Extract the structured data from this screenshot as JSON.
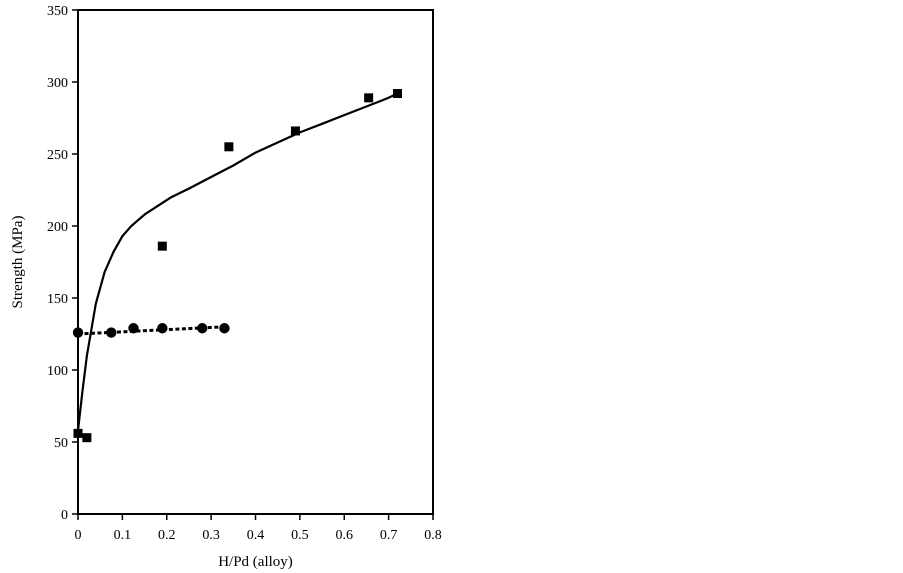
{
  "chart_data": {
    "type": "scatter",
    "title": "",
    "xlabel": "H/Pd (alloy)",
    "ylabel": "Strength (MPa)",
    "xlim": [
      0,
      0.8
    ],
    "ylim": [
      0,
      350
    ],
    "x_ticks": [
      0,
      0.1,
      0.2,
      0.3,
      0.4,
      0.5,
      0.6,
      0.7,
      0.8
    ],
    "x_tick_labels": [
      "0",
      "0.1",
      "0.2",
      "0.3",
      "0.4",
      "0.5",
      "0.6",
      "0.7",
      "0.8"
    ],
    "y_ticks": [
      0,
      50,
      100,
      150,
      200,
      250,
      300,
      350
    ],
    "y_tick_labels": [
      "0",
      "50",
      "100",
      "150",
      "200",
      "250",
      "300",
      "350"
    ],
    "grid": false,
    "legend": "none",
    "series": [
      {
        "marker": "square",
        "color": "#000000",
        "x": [
          0.0,
          0.02,
          0.19,
          0.34,
          0.49,
          0.655,
          0.72
        ],
        "y": [
          56,
          53,
          186,
          255,
          266,
          289,
          292
        ],
        "trendline": {
          "style": "solid",
          "x": [
            0.0,
            0.01,
            0.02,
            0.04,
            0.06,
            0.08,
            0.1,
            0.12,
            0.15,
            0.18,
            0.21,
            0.25,
            0.3,
            0.35,
            0.4,
            0.45,
            0.5,
            0.55,
            0.6,
            0.65,
            0.7,
            0.72
          ],
          "y": [
            58,
            85,
            110,
            146,
            168,
            182,
            193,
            200,
            208,
            214,
            220,
            226,
            234,
            242,
            251,
            258,
            265,
            271,
            277,
            283,
            289,
            292
          ]
        }
      },
      {
        "marker": "circle",
        "color": "#000000",
        "x": [
          0.0,
          0.075,
          0.125,
          0.19,
          0.28,
          0.33
        ],
        "y": [
          126,
          126,
          129,
          129,
          129,
          129
        ],
        "trendline": {
          "style": "dashed",
          "x": [
            0.0,
            0.33
          ],
          "y": [
            125,
            130
          ]
        }
      }
    ]
  }
}
